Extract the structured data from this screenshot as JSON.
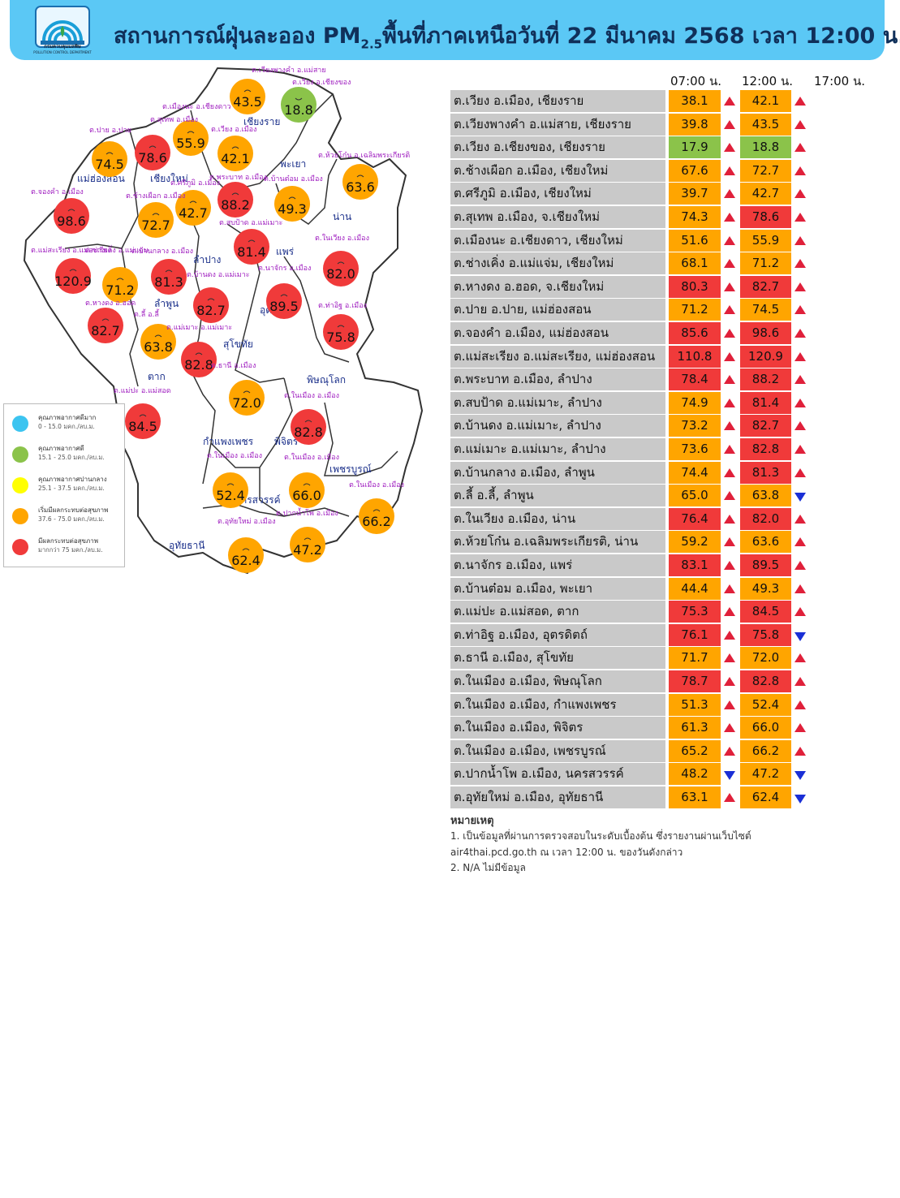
{
  "header": {
    "title_main": "สถานการณ์ฝุ่นละออง PM",
    "title_sub": "2.5",
    "title_rest": "พื้นที่ภาคเหนือวันที่ 22 มีนาคม 2568 เวลา 12:00 น.",
    "logo_text_th": "กรมควบคุมมลพิษ",
    "logo_text_en": "POLLUTION CONTROL DEPARTMENT"
  },
  "colors": {
    "header_bg": "#5bc8f5",
    "very_good": "#3cc4f0",
    "good": "#8bc34a",
    "moderate": "#ffff00",
    "begin_effect": "#ffa500",
    "effect": "#f03a3a",
    "up_arrow": "#e0203a",
    "down_arrow": "#1a2fd6"
  },
  "legend": [
    {
      "title": "คุณภาพอากาศดีมาก",
      "range": "0 - 15.0 มคก./ลบ.ม.",
      "color": "#3cc4f0"
    },
    {
      "title": "คุณภาพอากาศดี",
      "range": "15.1 - 25.0 มคก./ลบ.ม.",
      "color": "#8bc34a"
    },
    {
      "title": "คุณภาพอากาศปานกลาง",
      "range": "25.1 - 37.5 มคก./ลบ.ม.",
      "color": "#ffff00"
    },
    {
      "title": "เริ่มมีผลกระทบต่อสุขภาพ",
      "range": "37.6 - 75.0 มคก./ลบ.ม.",
      "color": "#ffa500"
    },
    {
      "title": "มีผลกระทบต่อสุขภาพ",
      "range": "มากกว่า 75 มคก./ลบ.ม.",
      "color": "#f03a3a"
    }
  ],
  "table": {
    "time_headers": [
      "07:00 น.",
      "12:00 น.",
      "17:00 น."
    ],
    "rows": [
      {
        "station": "ต.เวียง อ.เมือง, เชียงราย",
        "v07": "38.1",
        "c07": "#ffa500",
        "t07": "up",
        "v12": "42.1",
        "c12": "#ffa500",
        "t12": "up"
      },
      {
        "station": "ต.เวียงพางคำ อ.แม่สาย, เชียงราย",
        "v07": "39.8",
        "c07": "#ffa500",
        "t07": "up",
        "v12": "43.5",
        "c12": "#ffa500",
        "t12": "up"
      },
      {
        "station": "ต.เวียง อ.เชียงของ, เชียงราย",
        "v07": "17.9",
        "c07": "#8bc34a",
        "t07": "up",
        "v12": "18.8",
        "c12": "#8bc34a",
        "t12": "up"
      },
      {
        "station": "ต.ช้างเผือก อ.เมือง, เชียงใหม่",
        "v07": "67.6",
        "c07": "#ffa500",
        "t07": "up",
        "v12": "72.7",
        "c12": "#ffa500",
        "t12": "up"
      },
      {
        "station": "ต.ศรีภูมิ อ.เมือง, เชียงใหม่",
        "v07": "39.7",
        "c07": "#ffa500",
        "t07": "up",
        "v12": "42.7",
        "c12": "#ffa500",
        "t12": "up"
      },
      {
        "station": "ต.สุเทพ  อ.เมือง, จ.เชียงใหม่",
        "v07": "74.3",
        "c07": "#ffa500",
        "t07": "up",
        "v12": "78.6",
        "c12": "#f03a3a",
        "t12": "up"
      },
      {
        "station": "ต.เมืองนะ อ.เชียงดาว, เชียงใหม่",
        "v07": "51.6",
        "c07": "#ffa500",
        "t07": "up",
        "v12": "55.9",
        "c12": "#ffa500",
        "t12": "up"
      },
      {
        "station": "ต.ช่างเคิ่ง อ.แม่แจ่ม, เชียงใหม่",
        "v07": "68.1",
        "c07": "#ffa500",
        "t07": "up",
        "v12": "71.2",
        "c12": "#ffa500",
        "t12": "up"
      },
      {
        "station": "ต.หางดง อ.ฮอด, จ.เชียงใหม่",
        "v07": "80.3",
        "c07": "#f03a3a",
        "t07": "up",
        "v12": "82.7",
        "c12": "#f03a3a",
        "t12": "up"
      },
      {
        "station": "ต.ปาย อ.ปาย, แม่ฮ่องสอน",
        "v07": "71.2",
        "c07": "#ffa500",
        "t07": "up",
        "v12": "74.5",
        "c12": "#ffa500",
        "t12": "up"
      },
      {
        "station": "ต.จองคำ อ.เมือง, แม่ฮ่องสอน",
        "v07": "85.6",
        "c07": "#f03a3a",
        "t07": "up",
        "v12": "98.6",
        "c12": "#f03a3a",
        "t12": "up"
      },
      {
        "station": "ต.แม่สะเรียง อ.แม่สะเรียง, แม่ฮ่องสอน",
        "v07": "110.8",
        "c07": "#f03a3a",
        "t07": "up",
        "v12": "120.9",
        "c12": "#f03a3a",
        "t12": "up"
      },
      {
        "station": "ต.พระบาท อ.เมือง, ลำปาง",
        "v07": "78.4",
        "c07": "#f03a3a",
        "t07": "up",
        "v12": "88.2",
        "c12": "#f03a3a",
        "t12": "up"
      },
      {
        "station": "ต.สบป้าด อ.แม่เมาะ, ลำปาง",
        "v07": "74.9",
        "c07": "#ffa500",
        "t07": "up",
        "v12": "81.4",
        "c12": "#f03a3a",
        "t12": "up"
      },
      {
        "station": "ต.บ้านดง อ.แม่เมาะ, ลำปาง",
        "v07": "73.2",
        "c07": "#ffa500",
        "t07": "up",
        "v12": "82.7",
        "c12": "#f03a3a",
        "t12": "up"
      },
      {
        "station": "ต.แม่เมาะ อ.แม่เมาะ, ลำปาง",
        "v07": "73.6",
        "c07": "#ffa500",
        "t07": "up",
        "v12": "82.8",
        "c12": "#f03a3a",
        "t12": "up"
      },
      {
        "station": "ต.บ้านกลาง อ.เมือง, ลำพูน",
        "v07": "74.4",
        "c07": "#ffa500",
        "t07": "up",
        "v12": "81.3",
        "c12": "#f03a3a",
        "t12": "up"
      },
      {
        "station": "ต.ลี้ อ.ลี้, ลำพูน",
        "v07": "65.0",
        "c07": "#ffa500",
        "t07": "up",
        "v12": "63.8",
        "c12": "#ffa500",
        "t12": "down"
      },
      {
        "station": "ต.ในเวียง อ.เมือง, น่าน",
        "v07": "76.4",
        "c07": "#f03a3a",
        "t07": "up",
        "v12": "82.0",
        "c12": "#f03a3a",
        "t12": "up"
      },
      {
        "station": "ต.ห้วยโก๋น อ.เฉลิมพระเกียรติ, น่าน",
        "v07": "59.2",
        "c07": "#ffa500",
        "t07": "up",
        "v12": "63.6",
        "c12": "#ffa500",
        "t12": "up"
      },
      {
        "station": "ต.นาจักร อ.เมือง, แพร่",
        "v07": "83.1",
        "c07": "#f03a3a",
        "t07": "up",
        "v12": "89.5",
        "c12": "#f03a3a",
        "t12": "up"
      },
      {
        "station": "ต.บ้านต๋อม อ.เมือง, พะเยา",
        "v07": "44.4",
        "c07": "#ffa500",
        "t07": "up",
        "v12": "49.3",
        "c12": "#ffa500",
        "t12": "up"
      },
      {
        "station": "ต.แม่ปะ อ.แม่สอด, ตาก",
        "v07": "75.3",
        "c07": "#f03a3a",
        "t07": "up",
        "v12": "84.5",
        "c12": "#f03a3a",
        "t12": "up"
      },
      {
        "station": "ต.ท่าอิฐ อ.เมือง, อุตรดิตถ์",
        "v07": "76.1",
        "c07": "#f03a3a",
        "t07": "up",
        "v12": "75.8",
        "c12": "#f03a3a",
        "t12": "down"
      },
      {
        "station": "ต.ธานี อ.เมือง, สุโขทัย",
        "v07": "71.7",
        "c07": "#ffa500",
        "t07": "up",
        "v12": "72.0",
        "c12": "#ffa500",
        "t12": "up"
      },
      {
        "station": "ต.ในเมือง อ.เมือง, พิษณุโลก",
        "v07": "78.7",
        "c07": "#f03a3a",
        "t07": "up",
        "v12": "82.8",
        "c12": "#f03a3a",
        "t12": "up"
      },
      {
        "station": "ต.ในเมือง อ.เมือง, กำแพงเพชร",
        "v07": "51.3",
        "c07": "#ffa500",
        "t07": "up",
        "v12": "52.4",
        "c12": "#ffa500",
        "t12": "up"
      },
      {
        "station": "ต.ในเมือง อ.เมือง, พิจิตร",
        "v07": "61.3",
        "c07": "#ffa500",
        "t07": "up",
        "v12": "66.0",
        "c12": "#ffa500",
        "t12": "up"
      },
      {
        "station": "ต.ในเมือง อ.เมือง, เพชรบูรณ์",
        "v07": "65.2",
        "c07": "#ffa500",
        "t07": "up",
        "v12": "66.2",
        "c12": "#ffa500",
        "t12": "up"
      },
      {
        "station": "ต.ปากน้ำโพ อ.เมือง, นครสวรรค์",
        "v07": "48.2",
        "c07": "#ffa500",
        "t07": "down",
        "v12": "47.2",
        "c12": "#ffa500",
        "t12": "down"
      },
      {
        "station": "ต.อุทัยใหม่ อ.เมือง, อุทัยธานี",
        "v07": "63.1",
        "c07": "#ffa500",
        "t07": "up",
        "v12": "62.4",
        "c12": "#ffa500",
        "t12": "down"
      }
    ]
  },
  "notes": {
    "title": "หมายเหตุ",
    "line1": "1. เป็นข้อมูลที่ผ่านการตรวจสอบในระดับเบื้องต้น  ซึ่งรายงานผ่านเว็บไซต์",
    "line2": "air4thai.pcd.go.th  ณ  เวลา  12:00  น.  ของวันดังกล่าว",
    "line3": "2.  N/A  ไม่มีข้อมูล"
  },
  "map": {
    "provinces": [
      {
        "name": "เชียงราย"
      },
      {
        "name": "แม่ฮ่องสอน"
      },
      {
        "name": "เชียงใหม่"
      },
      {
        "name": "พะเยา"
      },
      {
        "name": "น่าน"
      },
      {
        "name": "ลำปาง"
      },
      {
        "name": "แพร่"
      },
      {
        "name": "ลำพูน"
      },
      {
        "name": "อุตรดิตถ์"
      },
      {
        "name": "สุโขทัย"
      },
      {
        "name": "ตาก"
      },
      {
        "name": "พิษณุโลก"
      },
      {
        "name": "กำแพงเพชร"
      },
      {
        "name": "พิจิตร"
      },
      {
        "name": "เพชรบูรณ์"
      },
      {
        "name": "นครสวรรค์"
      },
      {
        "name": "อุทัยธานี"
      }
    ],
    "stations": [
      {
        "label": "ต.เวียงพางคำ อ.แม่สาย",
        "value": "43.5",
        "color": "#ffa500"
      },
      {
        "label": "ต.เวียง อ.เชียงของ",
        "value": "18.8",
        "color": "#8bc34a"
      },
      {
        "label": "ต.เมืองนะ อ.เชียงดาว",
        "value": "55.9",
        "color": "#ffa500"
      },
      {
        "label": "ต.สุเทพ  อ.เมือง",
        "value": "78.6",
        "color": "#f03a3a"
      },
      {
        "label": "ต.ปาย อ.ปาย",
        "value": "74.5",
        "color": "#ffa500"
      },
      {
        "label": "ต.เวียง อ.เมือง",
        "value": "42.1",
        "color": "#ffa500"
      },
      {
        "label": "ต.ห้วยโก๋น อ.เฉลิมพระเกียรติ",
        "value": "63.6",
        "color": "#ffa500"
      },
      {
        "label": "ต.บ้านต๋อม อ.เมือง",
        "value": "49.3",
        "color": "#ffa500"
      },
      {
        "label": "ต.พระบาท อ.เมือง",
        "value": "88.2",
        "color": "#f03a3a"
      },
      {
        "label": "ต.ศรีภูมิ อ.เมือง",
        "value": "42.7",
        "color": "#ffa500"
      },
      {
        "label": "ต.ช้างเผือก อ.เมือง",
        "value": "72.7",
        "color": "#ffa500"
      },
      {
        "label": "ต.จองคำ อ.เมือง",
        "value": "98.6",
        "color": "#f03a3a"
      },
      {
        "label": "ต.สบป้าด อ.แม่เมาะ",
        "value": "81.4",
        "color": "#f03a3a"
      },
      {
        "label": "ต.ในเวียง อ.เมือง",
        "value": "82.0",
        "color": "#f03a3a"
      },
      {
        "label": "ต.แม่สะเรียง อ.แม่สะเรียง",
        "value": "120.9",
        "color": "#f03a3a"
      },
      {
        "label": "ต.ช่างเคิ่ง อ.แม่แจ่ม",
        "value": "71.2",
        "color": "#ffa500"
      },
      {
        "label": "ต.บ้านกลาง อ.เมือง",
        "value": "81.3",
        "color": "#f03a3a"
      },
      {
        "label": "ต.นาจักร อ.เมือง",
        "value": "89.5",
        "color": "#f03a3a"
      },
      {
        "label": "ต.บ้านดง อ.แม่เมาะ",
        "value": "82.7",
        "color": "#f03a3a"
      },
      {
        "label": "ต.หางดง อ.ฮอด",
        "value": "82.7",
        "color": "#f03a3a"
      },
      {
        "label": "ต.ลี้ อ.ลี้",
        "value": "63.8",
        "color": "#ffa500"
      },
      {
        "label": "ต.แม่เมาะ อ.แม่เมาะ",
        "value": "82.8",
        "color": "#f03a3a"
      },
      {
        "label": "ต.ท่าอิฐ อ.เมือง",
        "value": "75.8",
        "color": "#f03a3a"
      },
      {
        "label": "ต.ธานี อ.เมือง",
        "value": "72.0",
        "color": "#ffa500"
      },
      {
        "label": "ต.แม่ปะ อ.แม่สอด",
        "value": "84.5",
        "color": "#f03a3a"
      },
      {
        "label": "ต.ในเมือง อ.เมือง",
        "value": "82.8",
        "color": "#f03a3a"
      },
      {
        "label": "ต.ในเมือง อ.เมือง",
        "value": "52.4",
        "color": "#ffa500"
      },
      {
        "label": "ต.ในเมือง อ.เมือง",
        "value": "66.0",
        "color": "#ffa500"
      },
      {
        "label": "ต.ในเมือง อ.เมือง",
        "value": "66.2",
        "color": "#ffa500"
      },
      {
        "label": "ต.อุทัยใหม่ อ.เมือง",
        "value": "62.4",
        "color": "#ffa500"
      },
      {
        "label": "ต.ปากน้ำโพ อ.เมือง",
        "value": "47.2",
        "color": "#ffa500"
      }
    ]
  }
}
